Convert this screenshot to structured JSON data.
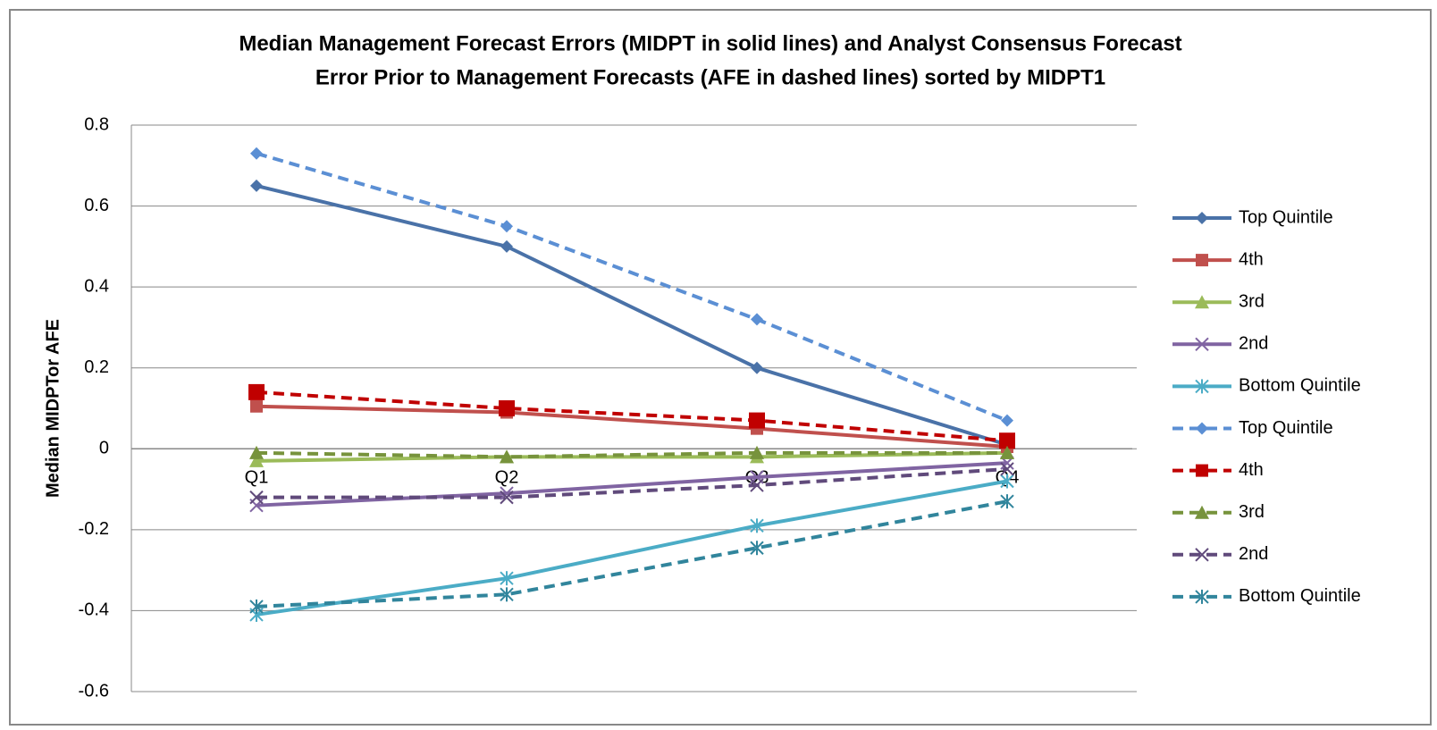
{
  "chart_data": {
    "type": "line",
    "title": [
      "Median Management Forecast Errors (MIDPT in solid lines) and Analyst Consensus Forecast",
      "Error Prior to Management Forecasts (AFE in dashed lines) sorted by MIDPT1"
    ],
    "y_label": "Median MIDPTor AFE",
    "categories": [
      "Q1",
      "Q2",
      "Q3",
      "Q4"
    ],
    "ylim": [
      -0.6,
      0.8
    ],
    "yticks": [
      -0.6,
      -0.4,
      -0.2,
      0,
      0.2,
      0.4,
      0.6,
      0.8
    ],
    "grid": true,
    "legend": "right",
    "series": [
      {
        "name": "Top Quintile",
        "color": "#4a72a8",
        "dash": false,
        "marker": "diamond",
        "values": [
          0.65,
          0.5,
          0.2,
          0.01
        ]
      },
      {
        "name": "4th",
        "color": "#c0504d",
        "dash": false,
        "marker": "square",
        "values": [
          0.105,
          0.09,
          0.05,
          0.005
        ]
      },
      {
        "name": "3rd",
        "color": "#9bbb59",
        "dash": false,
        "marker": "triangle",
        "values": [
          -0.03,
          -0.02,
          -0.02,
          -0.01
        ]
      },
      {
        "name": "2nd",
        "color": "#8064a2",
        "dash": false,
        "marker": "x",
        "values": [
          -0.14,
          -0.11,
          -0.07,
          -0.035
        ]
      },
      {
        "name": "Bottom Quintile",
        "color": "#4bacc6",
        "dash": false,
        "marker": "star",
        "values": [
          -0.41,
          -0.32,
          -0.19,
          -0.08
        ]
      },
      {
        "name": "Top Quintile",
        "color": "#5b8fd4",
        "dash": true,
        "marker": "diamond",
        "values": [
          0.73,
          0.55,
          0.32,
          0.07
        ]
      },
      {
        "name": "4th",
        "color": "#c00000",
        "dash": true,
        "marker": "square",
        "values": [
          0.14,
          0.1,
          0.07,
          0.02
        ]
      },
      {
        "name": "3rd",
        "color": "#77933c",
        "dash": true,
        "marker": "triangle",
        "values": [
          -0.01,
          -0.02,
          -0.01,
          -0.01
        ]
      },
      {
        "name": "2nd",
        "color": "#604a7b",
        "dash": true,
        "marker": "x",
        "values": [
          -0.12,
          -0.12,
          -0.09,
          -0.05
        ]
      },
      {
        "name": "Bottom Quintile",
        "color": "#31859c",
        "dash": true,
        "marker": "star",
        "values": [
          -0.39,
          -0.36,
          -0.245,
          -0.13
        ]
      }
    ]
  }
}
